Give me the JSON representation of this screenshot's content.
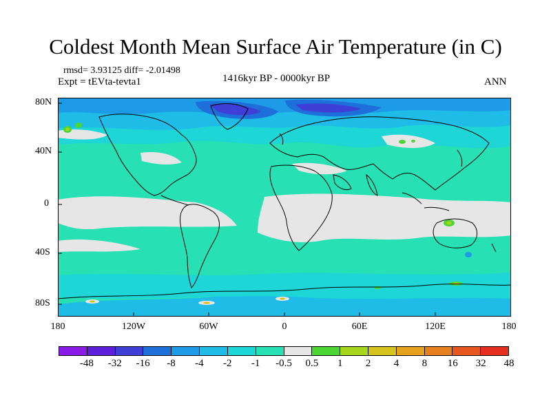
{
  "title": "Coldest Month Mean Surface Air Temperature (in C)",
  "stats": "rmsd= 3.93125 diff= -2.01498",
  "experiment": "Expt = tEVta-tevta1",
  "period": "1416kyr BP - 0000kyr BP",
  "season": "ANN",
  "lat_labels": [
    "80N",
    "40N",
    "0",
    "40S",
    "80S"
  ],
  "lon_labels": [
    "180",
    "120W",
    "60W",
    "0",
    "60E",
    "120E",
    "180"
  ],
  "colorbar": {
    "colors": [
      "#8a1ae6",
      "#5d1ed9",
      "#3d3fd6",
      "#1e6fd9",
      "#1e9be6",
      "#1ebce6",
      "#1ed6d6",
      "#27e0b4",
      "#e6e6e6",
      "#4bd633",
      "#a6d61e",
      "#d6c21e",
      "#e6a21e",
      "#e6801e",
      "#e6561e",
      "#e62e1e"
    ],
    "labels": [
      "-48",
      "-32",
      "-16",
      "-8",
      "-4",
      "-2",
      "-1",
      "-0.5",
      "0.5",
      "1",
      "2",
      "4",
      "8",
      "16",
      "32",
      "48"
    ]
  }
}
